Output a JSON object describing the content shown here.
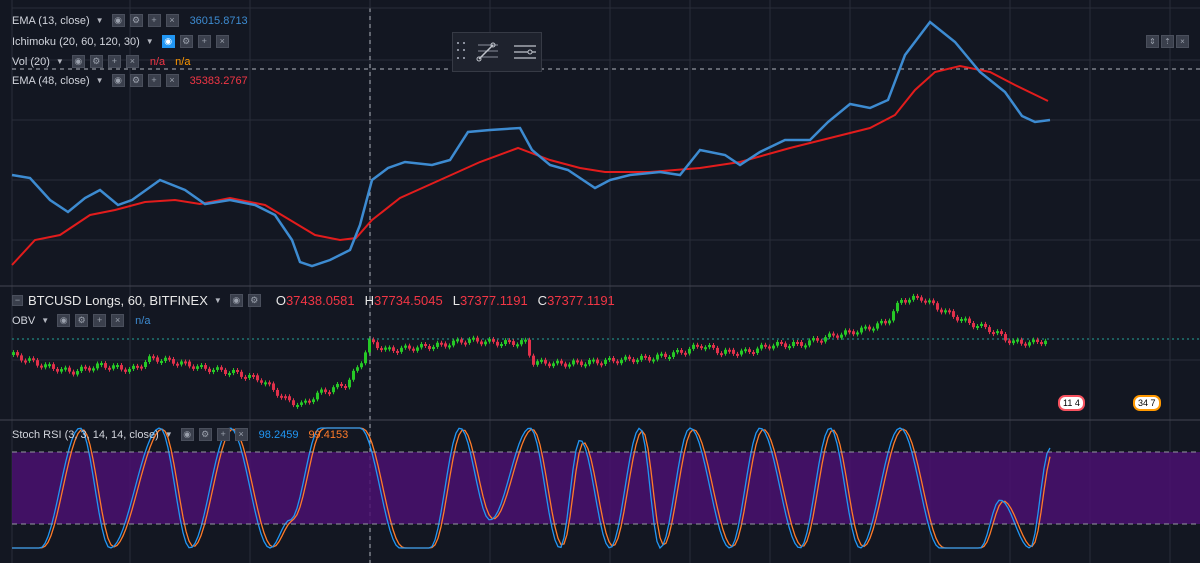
{
  "colors": {
    "background": "#131722",
    "grid": "#2a2e39",
    "ema13": "#3d8bd1",
    "ema48": "#e21c1c",
    "candle_up": "#26c926",
    "candle_down": "#e0314b",
    "stoch_k": "#2196f3",
    "stoch_d": "#ff7b29",
    "stoch_band": "#4a1170"
  },
  "panes": {
    "main": {
      "legends": [
        {
          "name": "EMA (13, close)",
          "value": "36015.8713",
          "value_color": "#3d8bd1"
        },
        {
          "name": "Ichimoku (20, 60, 120, 30)",
          "value": "",
          "value_color": ""
        },
        {
          "name": "Vol (20)",
          "value": "n/a",
          "value2": "n/a",
          "value_color": "#f23645"
        },
        {
          "name": "EMA (48, close)",
          "value": "35383.2767",
          "value_color": "#f23645"
        }
      ]
    },
    "longs": {
      "symbol": "BTCUSD Longs, 60, BITFINEX",
      "ohlc": [
        {
          "label": "O",
          "value": "37438.0581"
        },
        {
          "label": "H",
          "value": "37734.5045"
        },
        {
          "label": "L",
          "value": "37377.1191"
        },
        {
          "label": "C",
          "value": "37377.1191"
        }
      ],
      "obv": {
        "name": "OBV",
        "value": "n/a"
      },
      "events": [
        "11",
        "4",
        "34",
        "7"
      ]
    },
    "stoch": {
      "name": "Stoch RSI (3, 3, 14, 14, close)",
      "k_value": "98.2459",
      "d_value": "99.4153"
    }
  },
  "icons": {
    "floating_toolbar": [
      "grip-icon",
      "trend-line-icon",
      "horizontal-lines-icon"
    ],
    "pane_controls": [
      "collapse-icon",
      "up-icon",
      "close-icon"
    ]
  }
}
